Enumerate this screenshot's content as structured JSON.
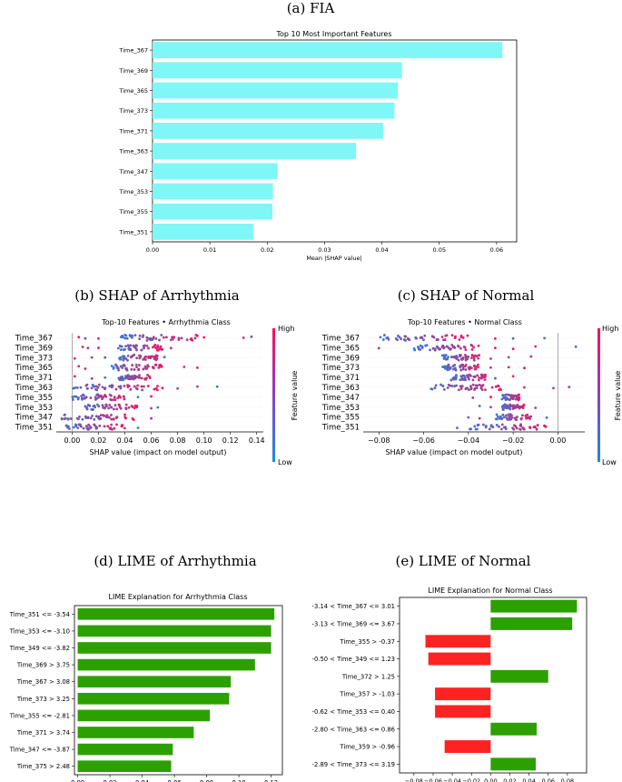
{
  "panels": [
    {
      "caption": "(a) FIA"
    },
    {
      "caption": "(b) SHAP of Arrhythmia"
    },
    {
      "caption": "(c) SHAP of Normal"
    },
    {
      "caption": "(d) LIME of Arrhythmia"
    },
    {
      "caption": "(e) LIME of Normal"
    }
  ],
  "colors": {
    "fia_bar": "#7ff7f7",
    "lime_pos": "#2ca000",
    "lime_neg": "#ff2222",
    "shap_low": "#1e88e5",
    "shap_high": "#ff0d57"
  },
  "chart_data": [
    {
      "id": "fia",
      "type": "bar",
      "orientation": "horizontal",
      "title": "Top 10 Most Important Features",
      "xlabel": "Mean |SHAP value|",
      "categories": [
        "Time_367",
        "Time_369",
        "Time_365",
        "Time_373",
        "Time_371",
        "Time_363",
        "Time_347",
        "Time_353",
        "Time_355",
        "Time_351"
      ],
      "values": [
        0.061,
        0.0435,
        0.0428,
        0.0422,
        0.0402,
        0.0355,
        0.0218,
        0.021,
        0.0209,
        0.0176
      ],
      "xlim": [
        0,
        0.0635
      ],
      "xticks": [
        "0.00",
        "0.01",
        "0.02",
        "0.03",
        "0.04",
        "0.05",
        "0.06"
      ],
      "xtick_values": [
        0,
        0.01,
        0.02,
        0.03,
        0.04,
        0.05,
        0.06
      ]
    },
    {
      "id": "shap_arr",
      "type": "scatter",
      "title": "Top-10 Features • Arrhythmia Class",
      "xlabel": "SHAP value (impact on model output)",
      "colorbar": {
        "label": "Feature value",
        "high": "High",
        "low": "Low"
      },
      "categories": [
        "Time_367",
        "Time_369",
        "Time_373",
        "Time_365",
        "Time_371",
        "Time_363",
        "Time_355",
        "Time_353",
        "Time_347",
        "Time_351"
      ],
      "xlim": [
        -0.012,
        0.145
      ],
      "xticks": [
        "0.00",
        "0.02",
        "0.04",
        "0.06",
        "0.08",
        "0.10",
        "0.12",
        "0.14"
      ],
      "xtick_values": [
        0,
        0.02,
        0.04,
        0.06,
        0.08,
        0.1,
        0.12,
        0.14
      ],
      "rows": [
        {
          "range": [
            0.035,
            0.095
          ],
          "outliers": [
            0.005,
            0.01,
            0.02,
            0.13,
            0.136,
            0.1
          ]
        },
        {
          "range": [
            0.035,
            0.07
          ],
          "outliers": [
            0.008,
            0.012,
            0.02,
            0.075
          ]
        },
        {
          "range": [
            0.035,
            0.065
          ],
          "outliers": [
            0.002,
            0.015,
            0.025,
            0.07
          ]
        },
        {
          "range": [
            0.03,
            0.07
          ],
          "outliers": [
            0.005,
            0.01,
            0.085,
            0.095
          ]
        },
        {
          "range": [
            0.035,
            0.06
          ],
          "outliers": [
            0.002,
            0.015,
            0.025
          ]
        },
        {
          "range": [
            0.0,
            0.07
          ],
          "outliers": [
            0.08,
            0.095,
            0.11
          ]
        },
        {
          "range": [
            0.0,
            0.04
          ],
          "outliers": [
            0.05,
            0.06
          ]
        },
        {
          "range": [
            0.008,
            0.05
          ],
          "outliers": [
            0.06,
            0.065
          ]
        },
        {
          "range": [
            -0.008,
            0.05
          ],
          "outliers": [
            0.06
          ]
        },
        {
          "range": [
            -0.005,
            0.04
          ],
          "outliers": [
            0.05
          ]
        }
      ]
    },
    {
      "id": "shap_norm",
      "type": "scatter",
      "title": "Top-10 Features • Normal Class",
      "xlabel": "SHAP value (impact on model output)",
      "colorbar": {
        "label": "Feature value",
        "high": "High",
        "low": "Low"
      },
      "categories": [
        "Time_367",
        "Time_365",
        "Time_369",
        "Time_373",
        "Time_371",
        "Time_363",
        "Time_347",
        "Time_353",
        "Time_355",
        "Time_351"
      ],
      "xlim": [
        -0.087,
        0.012
      ],
      "xticks": [
        "−0.08",
        "−0.06",
        "−0.04",
        "−0.02",
        "0.00"
      ],
      "xtick_values": [
        -0.08,
        -0.06,
        -0.04,
        -0.02,
        0
      ],
      "rows": [
        {
          "range": [
            -0.08,
            -0.04
          ],
          "outliers": [
            -0.028,
            -0.02,
            -0.006
          ]
        },
        {
          "range": [
            -0.065,
            -0.035
          ],
          "outliers": [
            -0.08,
            -0.028,
            -0.02,
            -0.01,
            0.008
          ]
        },
        {
          "range": [
            -0.052,
            -0.035
          ],
          "outliers": [
            -0.03,
            -0.022,
            -0.012
          ]
        },
        {
          "range": [
            -0.052,
            -0.035
          ],
          "outliers": [
            -0.03,
            -0.022,
            -0.015
          ]
        },
        {
          "range": [
            -0.048,
            -0.032
          ],
          "outliers": [
            -0.028,
            -0.02
          ]
        },
        {
          "range": [
            -0.06,
            -0.025
          ],
          "outliers": [
            -0.015,
            -0.002,
            0.005
          ]
        },
        {
          "range": [
            -0.025,
            -0.017
          ],
          "outliers": [
            -0.038,
            -0.03
          ]
        },
        {
          "range": [
            -0.025,
            -0.015
          ],
          "outliers": [
            -0.035,
            -0.03,
            -0.01
          ]
        },
        {
          "range": [
            -0.028,
            -0.012
          ],
          "outliers": [
            -0.04,
            -0.035,
            -0.005
          ]
        },
        {
          "range": [
            -0.04,
            -0.005
          ],
          "outliers": [
            -0.045
          ]
        }
      ]
    },
    {
      "id": "lime_arr",
      "type": "bar",
      "orientation": "horizontal",
      "title": "LIME Explanation for Arrhythmia Class",
      "categories": [
        "Time_351 <= -3.54",
        "Time_353 <= -3.10",
        "Time_349 <= -3.82",
        "Time_369 > 3.75",
        "Time_367 > 3.08",
        "Time_373 > 3.25",
        "Time_355 <= -2.81",
        "Time_371 > 3.74",
        "Time_347 <= -3.87",
        "Time_375 > 2.48"
      ],
      "values": [
        0.122,
        0.12,
        0.12,
        0.11,
        0.095,
        0.094,
        0.082,
        0.072,
        0.059,
        0.058
      ],
      "xlim": [
        -0.002,
        0.127
      ],
      "xticks": [
        "0.00",
        "0.02",
        "0.04",
        "0.06",
        "0.08",
        "0.10",
        "0.12"
      ],
      "xtick_values": [
        0,
        0.02,
        0.04,
        0.06,
        0.08,
        0.1,
        0.12
      ]
    },
    {
      "id": "lime_norm",
      "type": "bar",
      "orientation": "horizontal",
      "title": "LIME Explanation for Normal Class",
      "categories": [
        "-3.14 < Time_367 <= 3.01",
        "-3.13 < Time_369 <= 3.67",
        "Time_355 > -0.37",
        "-0.50 < Time_349 <= 1.23",
        "Time_372 > 1.25",
        "Time_357 > -1.03",
        "-0.62 < Time_353 <= 0.40",
        "-2.80 < Time_363 <= 0.86",
        "Time_359 > -0.96",
        "-2.89 < Time_373 <= 3.19"
      ],
      "values": [
        0.09,
        0.085,
        -0.068,
        -0.065,
        0.06,
        -0.058,
        -0.058,
        0.048,
        -0.048,
        0.047
      ],
      "xlim": [
        -0.095,
        0.1
      ],
      "xticks": [
        "−0.08",
        "−0.06",
        "−0.04",
        "−0.02",
        "0.00",
        "0.02",
        "0.04",
        "0.06",
        "0.08"
      ],
      "xtick_values": [
        -0.08,
        -0.06,
        -0.04,
        -0.02,
        0,
        0.02,
        0.04,
        0.06,
        0.08
      ]
    }
  ]
}
